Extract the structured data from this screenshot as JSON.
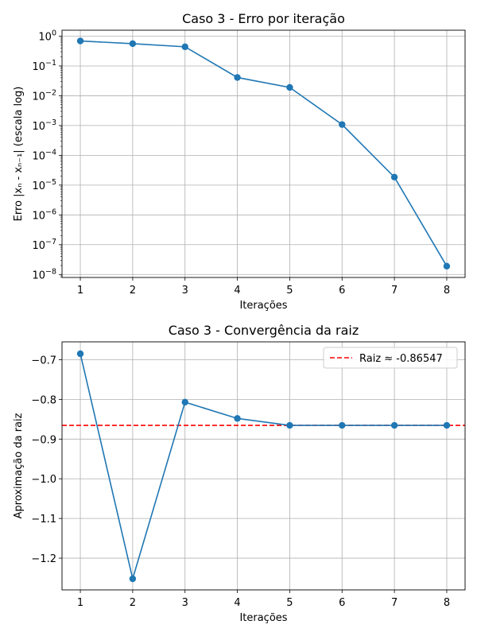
{
  "chart_data": [
    {
      "type": "line",
      "title": "Caso 3 - Erro por iteração",
      "xlabel": "Iterações",
      "ylabel": "Erro |xₙ - xₙ₋₁| (escala log)",
      "yscale": "log",
      "grid": true,
      "color": "#1f77b4",
      "x": [
        1,
        2,
        3,
        4,
        5,
        6,
        7,
        8
      ],
      "y": [
        0.69,
        0.56,
        0.44,
        0.041,
        0.019,
        0.00108,
        1.85e-05,
        1.9e-08
      ],
      "xlim": [
        0.65,
        8.35
      ],
      "ylim_exp": [
        -8.1,
        0.2
      ],
      "xticks": [
        "1",
        "2",
        "3",
        "4",
        "5",
        "6",
        "7",
        "8"
      ],
      "yticks": [
        {
          "base": "10",
          "exp": "0",
          "value": 1
        },
        {
          "base": "10",
          "exp": "−1",
          "value": 0.1
        },
        {
          "base": "10",
          "exp": "−2",
          "value": 0.01
        },
        {
          "base": "10",
          "exp": "−3",
          "value": 0.001
        },
        {
          "base": "10",
          "exp": "−4",
          "value": 0.0001
        },
        {
          "base": "10",
          "exp": "−5",
          "value": 1e-05
        },
        {
          "base": "10",
          "exp": "−6",
          "value": 1e-06
        },
        {
          "base": "10",
          "exp": "−7",
          "value": 1e-07
        },
        {
          "base": "10",
          "exp": "−8",
          "value": 1e-08
        }
      ]
    },
    {
      "type": "line",
      "title": "Caso 3 - Convergência da raiz",
      "xlabel": "Iterações",
      "ylabel": "Aproximação da raiz",
      "grid": true,
      "color": "#1f77b4",
      "x": [
        1,
        2,
        3,
        4,
        5,
        6,
        7,
        8
      ],
      "y": [
        -0.685,
        -1.252,
        -0.807,
        -0.848,
        -0.8655,
        -0.8655,
        -0.86547,
        -0.86547
      ],
      "xlim": [
        0.65,
        8.35
      ],
      "ylim": [
        -1.28,
        -0.655
      ],
      "xticks": [
        "1",
        "2",
        "3",
        "4",
        "5",
        "6",
        "7",
        "8"
      ],
      "yticks": [
        {
          "label": "−0.7",
          "value": -0.7
        },
        {
          "label": "−0.8",
          "value": -0.8
        },
        {
          "label": "−0.9",
          "value": -0.9
        },
        {
          "label": "−1.0",
          "value": -1.0
        },
        {
          "label": "−1.1",
          "value": -1.1
        },
        {
          "label": "−1.2",
          "value": -1.2
        }
      ],
      "reference_line": {
        "value": -0.86547,
        "color": "#ff0000",
        "style": "dashed"
      },
      "legend": {
        "label": "Raiz ≈ -0.86547",
        "position": "top-right"
      }
    }
  ]
}
